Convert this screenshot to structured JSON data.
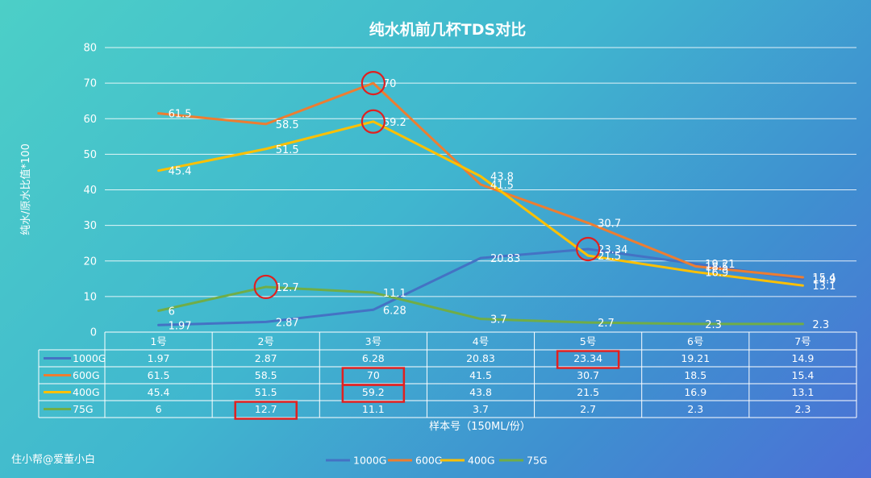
{
  "chart_data": {
    "type": "line",
    "title": "纯水机前几杯TDS对比",
    "xlabel": "样本号（150ML/份）",
    "ylabel": "纯水/原水比值*100",
    "ylim": [
      0,
      80
    ],
    "yticks": [
      "0",
      "10",
      "20",
      "30",
      "40",
      "50",
      "60",
      "70",
      "80"
    ],
    "grid": true,
    "legend": "bottom",
    "categories": [
      "1号",
      "2号",
      "3号",
      "4号",
      "5号",
      "6号",
      "7号"
    ],
    "series": [
      {
        "name": "1000G",
        "color": "#4472C4",
        "values": [
          1.97,
          2.87,
          6.28,
          20.83,
          23.34,
          19.21,
          14.9
        ],
        "labels": [
          "1.97",
          "2.87",
          "6.28",
          "20.83",
          "23.34",
          "19.21",
          "14.9"
        ]
      },
      {
        "name": "600G",
        "color": "#ED7D31",
        "values": [
          61.5,
          58.5,
          70,
          41.5,
          30.7,
          18.5,
          15.4
        ],
        "labels": [
          "61.5",
          "58.5",
          "70",
          "41.5",
          "30.7",
          "18.5",
          "15.4"
        ]
      },
      {
        "name": "400G",
        "color": "#FFC000",
        "values": [
          45.4,
          51.5,
          59.2,
          43.8,
          21.5,
          16.9,
          13.1
        ],
        "labels": [
          "45.4",
          "51.5",
          "59.2",
          "43.8",
          "21.5",
          "16.9",
          "13.1"
        ]
      },
      {
        "name": "75G",
        "color": "#70AD47",
        "values": [
          6,
          12.7,
          11.1,
          3.7,
          2.7,
          2.3,
          2.3
        ],
        "labels": [
          "6",
          "12.7",
          "11.1",
          "3.7",
          "2.7",
          "2.3",
          "2.3"
        ]
      }
    ],
    "highlights": [
      {
        "series": 0,
        "index": 4
      },
      {
        "series": 1,
        "index": 2
      },
      {
        "series": 2,
        "index": 2
      },
      {
        "series": 3,
        "index": 1
      }
    ],
    "highlight_color": "#E02020"
  },
  "watermark": "住小帮@爱董小白"
}
